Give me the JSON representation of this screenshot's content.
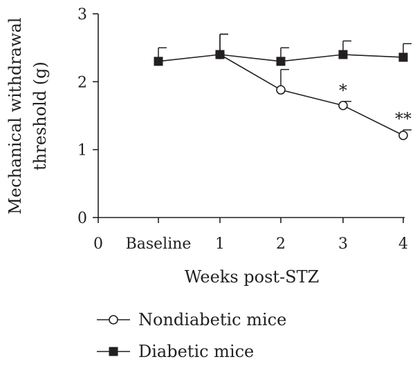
{
  "chart_data": {
    "type": "line",
    "title": "",
    "xlabel": "Weeks post-STZ",
    "ylabel_line1": "Mechanical withdrawal",
    "ylabel_line2": "threshold (g)",
    "x_ticks": [
      "0",
      "Baseline",
      "1",
      "2",
      "3",
      "4"
    ],
    "y_ticks": [
      "0",
      "1",
      "2",
      "3"
    ],
    "ylim": [
      0,
      3
    ],
    "grid": false,
    "legend_position": "bottom-left",
    "series": [
      {
        "name": "Nondiabetic mice",
        "marker": "open-circle",
        "x": [
          "1",
          "2",
          "3",
          "4"
        ],
        "y": [
          2.4,
          1.88,
          1.65,
          1.21
        ],
        "error": [
          0.3,
          0.3,
          0.06,
          0.08
        ]
      },
      {
        "name": "Diabetic mice",
        "marker": "filled-square",
        "x": [
          "Baseline",
          "1",
          "2",
          "3",
          "4"
        ],
        "y": [
          2.3,
          2.4,
          2.3,
          2.4,
          2.36
        ],
        "error": [
          0.2,
          0.3,
          0.2,
          0.2,
          0.2
        ]
      }
    ],
    "annotations": [
      {
        "x": "3",
        "text": "*"
      },
      {
        "x": "4",
        "text": "**"
      }
    ]
  }
}
